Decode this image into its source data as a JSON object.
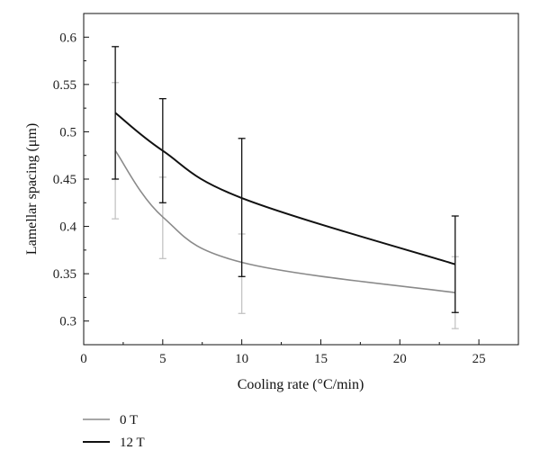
{
  "chart_data": {
    "type": "line",
    "title": "",
    "xlabel": "Cooling rate (°C/min)",
    "ylabel": "Lamellar spacing (μm)",
    "xlim": [
      0,
      27.5
    ],
    "ylim": [
      0.275,
      0.625
    ],
    "xticks": [
      0,
      5,
      10,
      15,
      20,
      25
    ],
    "xtick_labels": [
      "0",
      "5",
      "10",
      "15",
      "20",
      "25"
    ],
    "yticks": [
      0.3,
      0.35,
      0.4,
      0.45,
      0.5,
      0.55,
      0.6
    ],
    "ytick_labels": [
      "0.3",
      "0.35",
      "0.4",
      "0.45",
      "0.5",
      "0.55",
      "0.6"
    ],
    "grid": false,
    "legend_position": "bottom-left, below plot",
    "series": [
      {
        "name": "0 T",
        "color": "#8a8a8a",
        "errorbar_color": "#c4c4c4",
        "points": [
          {
            "x": 2,
            "y": 0.48,
            "y_low": 0.408,
            "y_high": 0.552
          },
          {
            "x": 5,
            "y": 0.41,
            "y_low": 0.366,
            "y_high": 0.452
          },
          {
            "x": 10,
            "y": 0.362,
            "y_low": 0.308,
            "y_high": 0.392
          },
          {
            "x": 23.5,
            "y": 0.33,
            "y_low": 0.292,
            "y_high": 0.368
          }
        ]
      },
      {
        "name": "12 T",
        "color": "#111111",
        "errorbar_color": "#111111",
        "points": [
          {
            "x": 2,
            "y": 0.52,
            "y_low": 0.45,
            "y_high": 0.59
          },
          {
            "x": 5,
            "y": 0.48,
            "y_low": 0.425,
            "y_high": 0.535
          },
          {
            "x": 10,
            "y": 0.43,
            "y_low": 0.347,
            "y_high": 0.493
          },
          {
            "x": 23.5,
            "y": 0.36,
            "y_low": 0.309,
            "y_high": 0.411
          }
        ]
      }
    ]
  }
}
